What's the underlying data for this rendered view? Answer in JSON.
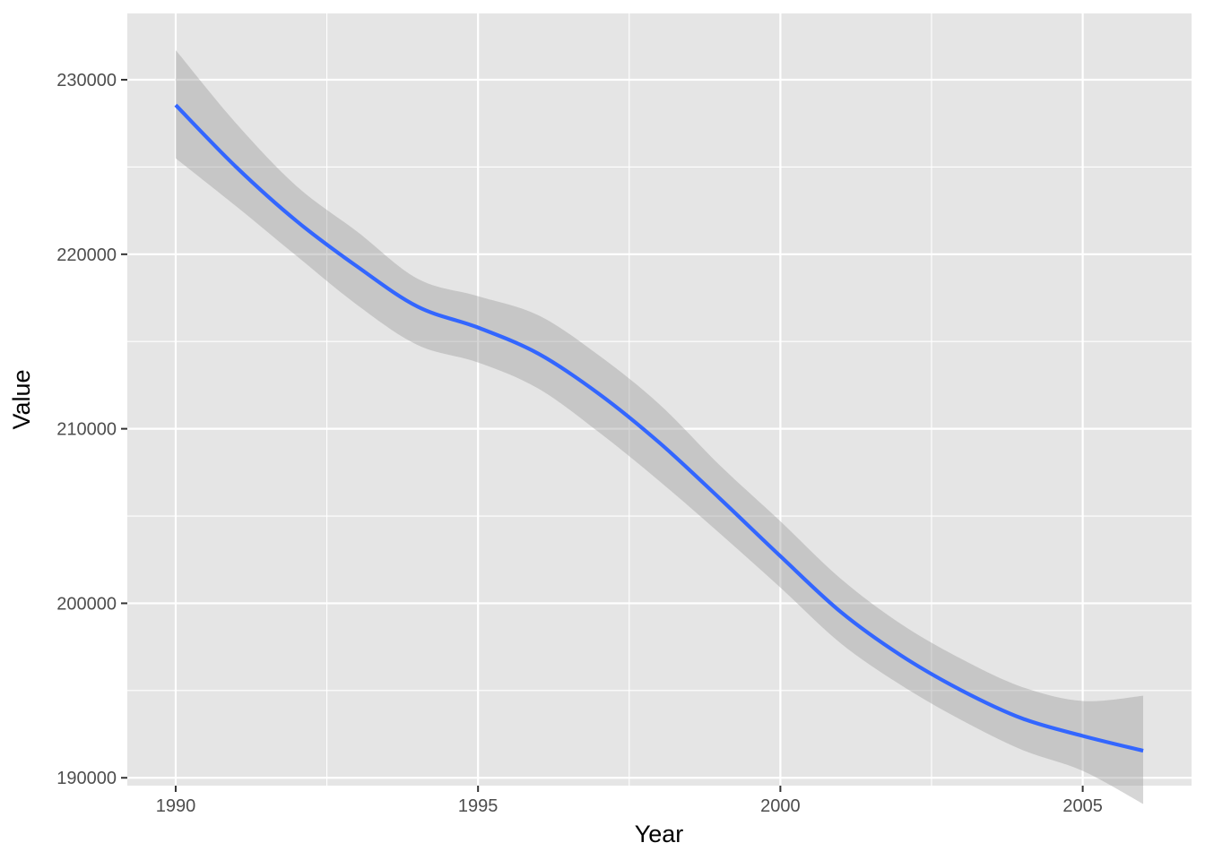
{
  "chart_data": {
    "type": "line",
    "title": "",
    "xlabel": "Year",
    "ylabel": "Value",
    "xlim": [
      1989.2,
      2006.8
    ],
    "ylim": [
      189550,
      233800
    ],
    "x_ticks": [
      1990,
      1995,
      2000,
      2005
    ],
    "x_tick_labels": [
      "1990",
      "1995",
      "2000",
      "2005"
    ],
    "y_ticks": [
      190000,
      200000,
      210000,
      220000,
      230000
    ],
    "y_tick_labels": [
      "190000",
      "200000",
      "210000",
      "220000",
      "230000"
    ],
    "grid": true,
    "legend": "none",
    "colors": {
      "panel_background": "#e5e5e5",
      "grid": "#ffffff",
      "line": "#3366ff",
      "ribbon": "#999999",
      "tick_text": "#4d4d4d",
      "tick_mark": "#333333"
    },
    "series": [
      {
        "x": [
          1990,
          1991,
          1992,
          1993,
          1994,
          1995,
          1996,
          1997,
          1998,
          1999,
          2000,
          2001,
          2002,
          2003,
          2004,
          2005,
          2006
        ],
        "y": [
          228550,
          225000,
          221900,
          219300,
          217000,
          215800,
          214300,
          212000,
          209200,
          206000,
          202700,
          199500,
          197000,
          195000,
          193400,
          192400,
          191550
        ],
        "lower": [
          225500,
          222750,
          219900,
          217100,
          214800,
          213800,
          212300,
          209800,
          207000,
          204000,
          200900,
          197700,
          195300,
          193300,
          191600,
          190400,
          188500
        ],
        "upper": [
          231700,
          227500,
          223900,
          221300,
          218600,
          217600,
          216500,
          214200,
          211400,
          207900,
          204700,
          201400,
          198800,
          196800,
          195200,
          194400,
          194700
        ]
      }
    ]
  }
}
